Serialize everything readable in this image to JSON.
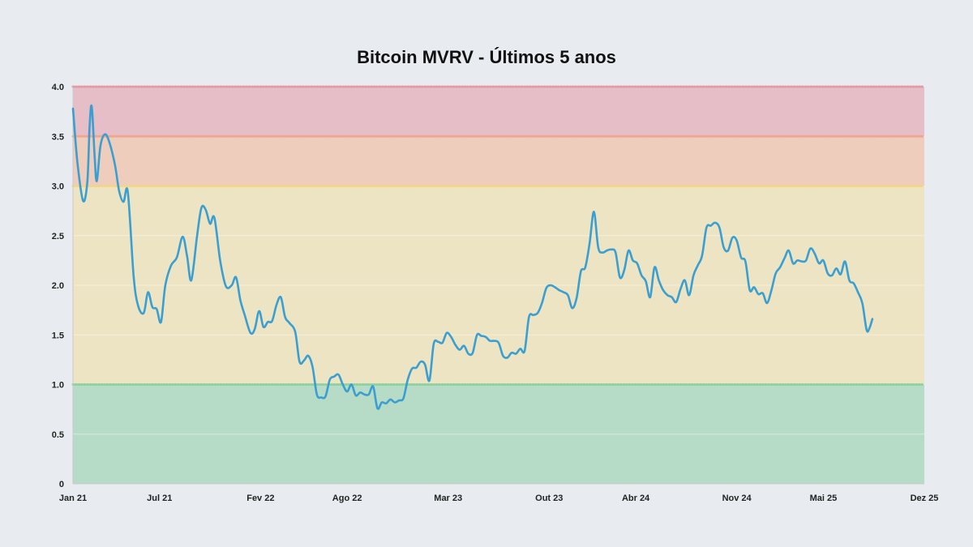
{
  "chart_data": {
    "type": "line",
    "title": "Bitcoin MVRV - Últimos 5 anos",
    "xlabel": "",
    "ylabel": "",
    "ylim": [
      0,
      4
    ],
    "yticks": [
      "0",
      "0.5",
      "1.0",
      "1.5",
      "2.0",
      "2.5",
      "3.0",
      "3.5",
      "4.0"
    ],
    "xticks": [
      {
        "label": "Jan 21",
        "month": 0
      },
      {
        "label": "Jul 21",
        "month": 6
      },
      {
        "label": "Fev 22",
        "month": 13
      },
      {
        "label": "Ago 22",
        "month": 19
      },
      {
        "label": "Mar 23",
        "month": 26
      },
      {
        "label": "Out 23",
        "month": 33
      },
      {
        "label": "Abr 24",
        "month": 39
      },
      {
        "label": "Nov 24",
        "month": 46
      },
      {
        "label": "Mai 25",
        "month": 52
      },
      {
        "label": "Dez 25",
        "month": 59
      }
    ],
    "x_range_months": [
      0,
      59
    ],
    "zones": [
      {
        "from": 0,
        "to": 1.0,
        "color": "#b6dbc7"
      },
      {
        "from": 1.0,
        "to": 3.0,
        "color": "#ede4c3"
      },
      {
        "from": 3.0,
        "to": 3.5,
        "color": "#eecdbd"
      },
      {
        "from": 3.5,
        "to": 4.0,
        "color": "#e6bec7"
      }
    ],
    "thresholds": [
      {
        "value": 1.0,
        "color": "#8fd19e"
      },
      {
        "value": 3.0,
        "color": "#f3d48a"
      },
      {
        "value": 3.5,
        "color": "#f0a58f"
      },
      {
        "value": 4.0,
        "color": "#e39aa6"
      }
    ],
    "line_color": "#3a9fd0",
    "grid": true,
    "series": [
      {
        "points": [
          [
            0.0,
            3.78
          ],
          [
            0.3,
            3.25
          ],
          [
            0.7,
            2.85
          ],
          [
            1.0,
            3.05
          ],
          [
            1.15,
            3.6
          ],
          [
            1.3,
            3.8
          ],
          [
            1.5,
            3.3
          ],
          [
            1.65,
            3.05
          ],
          [
            1.9,
            3.4
          ],
          [
            2.2,
            3.52
          ],
          [
            2.5,
            3.45
          ],
          [
            2.9,
            3.22
          ],
          [
            3.2,
            2.95
          ],
          [
            3.5,
            2.84
          ],
          [
            3.8,
            2.94
          ],
          [
            4.2,
            2.1
          ],
          [
            4.5,
            1.8
          ],
          [
            4.9,
            1.72
          ],
          [
            5.2,
            1.93
          ],
          [
            5.5,
            1.78
          ],
          [
            5.8,
            1.76
          ],
          [
            6.1,
            1.63
          ],
          [
            6.4,
            2.0
          ],
          [
            6.8,
            2.2
          ],
          [
            7.2,
            2.28
          ],
          [
            7.6,
            2.49
          ],
          [
            7.9,
            2.3
          ],
          [
            8.2,
            2.05
          ],
          [
            8.6,
            2.5
          ],
          [
            8.9,
            2.78
          ],
          [
            9.2,
            2.76
          ],
          [
            9.5,
            2.62
          ],
          [
            9.8,
            2.68
          ],
          [
            10.2,
            2.25
          ],
          [
            10.6,
            1.99
          ],
          [
            11.0,
            2.0
          ],
          [
            11.3,
            2.08
          ],
          [
            11.6,
            1.85
          ],
          [
            11.9,
            1.7
          ],
          [
            12.3,
            1.52
          ],
          [
            12.6,
            1.56
          ],
          [
            12.9,
            1.74
          ],
          [
            13.2,
            1.58
          ],
          [
            13.5,
            1.63
          ],
          [
            13.8,
            1.64
          ],
          [
            14.1,
            1.8
          ],
          [
            14.4,
            1.88
          ],
          [
            14.7,
            1.68
          ],
          [
            15.0,
            1.62
          ],
          [
            15.4,
            1.53
          ],
          [
            15.7,
            1.23
          ],
          [
            16.0,
            1.24
          ],
          [
            16.3,
            1.29
          ],
          [
            16.6,
            1.18
          ],
          [
            16.9,
            0.9
          ],
          [
            17.2,
            0.87
          ],
          [
            17.5,
            0.88
          ],
          [
            17.8,
            1.05
          ],
          [
            18.1,
            1.08
          ],
          [
            18.4,
            1.1
          ],
          [
            18.7,
            1.0
          ],
          [
            19.0,
            0.93
          ],
          [
            19.3,
            1.0
          ],
          [
            19.6,
            0.89
          ],
          [
            19.9,
            0.92
          ],
          [
            20.2,
            0.9
          ],
          [
            20.5,
            0.9
          ],
          [
            20.8,
            0.98
          ],
          [
            21.1,
            0.76
          ],
          [
            21.4,
            0.82
          ],
          [
            21.7,
            0.81
          ],
          [
            22.0,
            0.85
          ],
          [
            22.3,
            0.82
          ],
          [
            22.6,
            0.84
          ],
          [
            22.9,
            0.86
          ],
          [
            23.2,
            1.05
          ],
          [
            23.5,
            1.16
          ],
          [
            23.8,
            1.17
          ],
          [
            24.1,
            1.23
          ],
          [
            24.4,
            1.2
          ],
          [
            24.7,
            1.04
          ],
          [
            25.0,
            1.41
          ],
          [
            25.3,
            1.43
          ],
          [
            25.6,
            1.42
          ],
          [
            25.9,
            1.52
          ],
          [
            26.2,
            1.48
          ],
          [
            26.5,
            1.4
          ],
          [
            26.8,
            1.35
          ],
          [
            27.1,
            1.39
          ],
          [
            27.4,
            1.31
          ],
          [
            27.7,
            1.32
          ],
          [
            28.0,
            1.5
          ],
          [
            28.3,
            1.49
          ],
          [
            28.6,
            1.48
          ],
          [
            28.9,
            1.44
          ],
          [
            29.2,
            1.44
          ],
          [
            29.5,
            1.42
          ],
          [
            29.8,
            1.29
          ],
          [
            30.1,
            1.27
          ],
          [
            30.4,
            1.32
          ],
          [
            30.7,
            1.31
          ],
          [
            31.0,
            1.36
          ],
          [
            31.3,
            1.34
          ],
          [
            31.6,
            1.68
          ],
          [
            31.9,
            1.7
          ],
          [
            32.2,
            1.72
          ],
          [
            32.5,
            1.82
          ],
          [
            32.8,
            1.97
          ],
          [
            33.1,
            2.0
          ],
          [
            33.4,
            1.98
          ],
          [
            33.7,
            1.95
          ],
          [
            34.0,
            1.93
          ],
          [
            34.3,
            1.9
          ],
          [
            34.6,
            1.77
          ],
          [
            34.9,
            1.87
          ],
          [
            35.2,
            2.14
          ],
          [
            35.5,
            2.18
          ],
          [
            35.8,
            2.42
          ],
          [
            36.1,
            2.74
          ],
          [
            36.4,
            2.38
          ],
          [
            36.7,
            2.33
          ],
          [
            37.0,
            2.35
          ],
          [
            37.3,
            2.36
          ],
          [
            37.6,
            2.33
          ],
          [
            37.9,
            2.08
          ],
          [
            38.2,
            2.15
          ],
          [
            38.5,
            2.35
          ],
          [
            38.8,
            2.25
          ],
          [
            39.1,
            2.22
          ],
          [
            39.4,
            2.1
          ],
          [
            39.7,
            2.04
          ],
          [
            40.0,
            1.88
          ],
          [
            40.3,
            2.18
          ],
          [
            40.6,
            2.05
          ],
          [
            40.9,
            1.95
          ],
          [
            41.2,
            1.9
          ],
          [
            41.5,
            1.88
          ],
          [
            41.8,
            1.83
          ],
          [
            42.1,
            1.96
          ],
          [
            42.4,
            2.05
          ],
          [
            42.7,
            1.9
          ],
          [
            43.0,
            2.1
          ],
          [
            43.3,
            2.2
          ],
          [
            43.6,
            2.3
          ],
          [
            43.9,
            2.58
          ],
          [
            44.2,
            2.6
          ],
          [
            44.5,
            2.63
          ],
          [
            44.8,
            2.58
          ],
          [
            45.1,
            2.38
          ],
          [
            45.4,
            2.35
          ],
          [
            45.7,
            2.48
          ],
          [
            46.0,
            2.45
          ],
          [
            46.3,
            2.28
          ],
          [
            46.6,
            2.24
          ],
          [
            46.9,
            1.95
          ],
          [
            47.2,
            1.98
          ],
          [
            47.5,
            1.91
          ],
          [
            47.8,
            1.92
          ],
          [
            48.1,
            1.82
          ],
          [
            48.4,
            1.95
          ],
          [
            48.7,
            2.12
          ],
          [
            49.0,
            2.18
          ],
          [
            49.3,
            2.27
          ],
          [
            49.6,
            2.35
          ],
          [
            49.9,
            2.22
          ],
          [
            50.2,
            2.25
          ],
          [
            50.5,
            2.24
          ],
          [
            50.8,
            2.25
          ],
          [
            51.1,
            2.37
          ],
          [
            51.4,
            2.32
          ],
          [
            51.7,
            2.22
          ],
          [
            52.0,
            2.25
          ],
          [
            52.3,
            2.12
          ],
          [
            52.6,
            2.1
          ],
          [
            52.9,
            2.17
          ],
          [
            53.2,
            2.11
          ],
          [
            53.5,
            2.24
          ],
          [
            53.8,
            2.05
          ],
          [
            54.1,
            2.02
          ],
          [
            54.4,
            1.93
          ],
          [
            54.7,
            1.82
          ],
          [
            55.0,
            1.55
          ],
          [
            55.2,
            1.57
          ],
          [
            55.4,
            1.66
          ]
        ]
      }
    ]
  }
}
